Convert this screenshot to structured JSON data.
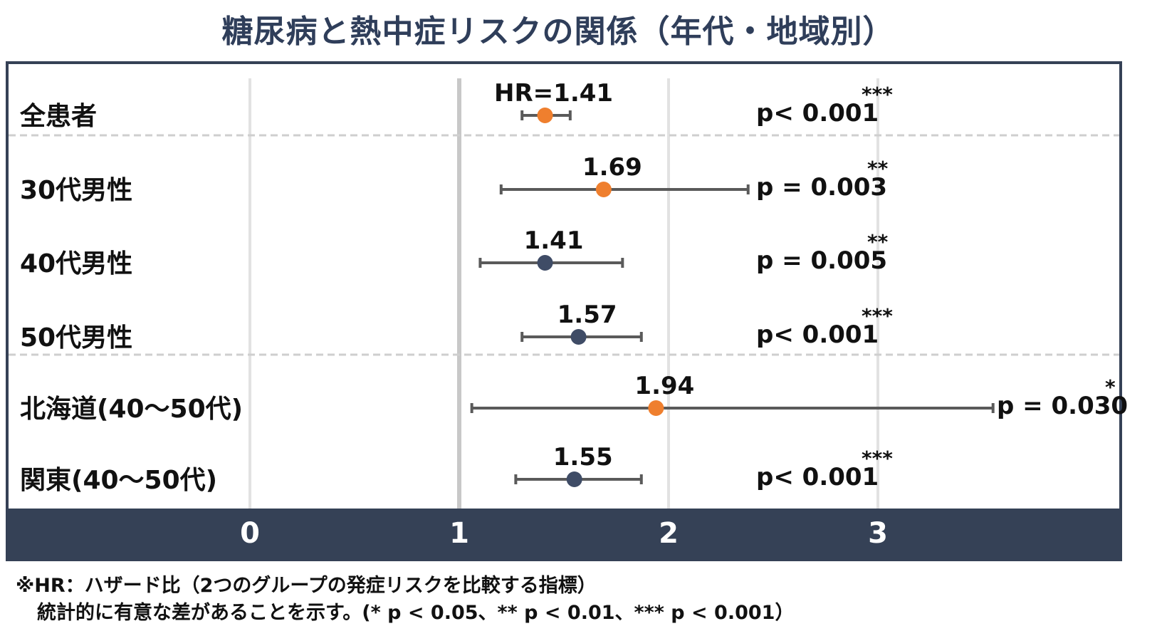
{
  "chart_data": {
    "type": "forest",
    "title": "糖尿病と熱中症リスクの関係（年代・地域別）",
    "x_ticks": [
      0,
      1,
      2,
      3
    ],
    "xlim": [
      0,
      4.2
    ],
    "reference_line": 1,
    "groups": [
      {
        "label": "全患者",
        "hr": 1.41,
        "hr_text": "HR=1.41",
        "ci_low": 1.3,
        "ci_high": 1.53,
        "p_text": "p< 0.001",
        "sig": "***",
        "color": "#ef7f2e"
      },
      {
        "label": "30代男性",
        "hr": 1.69,
        "hr_text": "1.69",
        "ci_low": 1.2,
        "ci_high": 2.38,
        "p_text": "p = 0.003",
        "sig": "**",
        "color": "#ef7f2e"
      },
      {
        "label": "40代男性",
        "hr": 1.41,
        "hr_text": "1.41",
        "ci_low": 1.1,
        "ci_high": 1.78,
        "p_text": "p = 0.005",
        "sig": "**",
        "color": "#3f4c66"
      },
      {
        "label": "50代男性",
        "hr": 1.57,
        "hr_text": "1.57",
        "ci_low": 1.3,
        "ci_high": 1.87,
        "p_text": "p< 0.001",
        "sig": "***",
        "color": "#3f4c66"
      },
      {
        "label": "北海道(40～50代)",
        "hr": 1.94,
        "hr_text": "1.94",
        "ci_low": 1.06,
        "ci_high": 3.55,
        "p_text": "p = 0.030",
        "sig": "*",
        "color": "#ef7f2e"
      },
      {
        "label": "関東(40～50代)",
        "hr": 1.55,
        "hr_text": "1.55",
        "ci_low": 1.27,
        "ci_high": 1.87,
        "p_text": "p< 0.001",
        "sig": "***",
        "color": "#3f4c66"
      }
    ],
    "colors": {
      "highlight": "#ef7f2e",
      "standard": "#3f4c66",
      "axis_band": "#354156",
      "title": "#2f3e5a"
    }
  },
  "footnote": {
    "line1": "※HR：ハザード比（2つのグループの発症リスクを比較する指標）",
    "line2": "統計的に有意な差があることを示す。(* p < 0.05、** p < 0.01、*** p < 0.001）"
  }
}
